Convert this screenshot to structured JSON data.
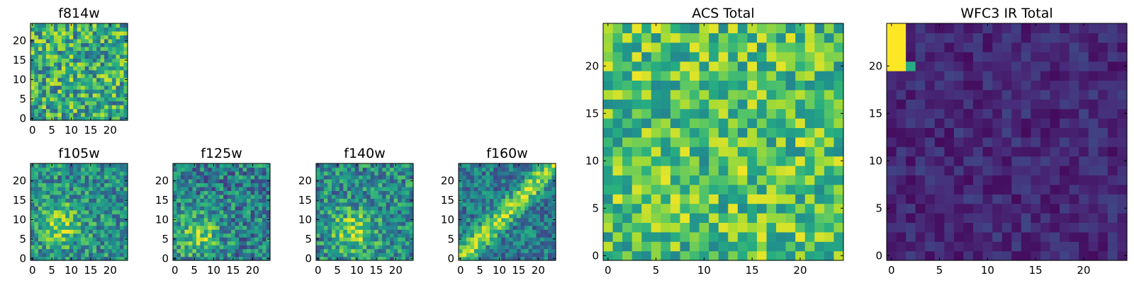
{
  "chart_data": [
    {
      "type": "heatmap",
      "title": "f814w",
      "shape": [
        25,
        25
      ],
      "xticks": [
        0,
        5,
        10,
        15,
        20
      ],
      "yticks": [
        0,
        5,
        10,
        15,
        20
      ],
      "xlim": [
        -0.5,
        24.5
      ],
      "ylim": [
        -0.5,
        24.5
      ],
      "colormap": "viridis",
      "pattern": "noise",
      "seed": 11,
      "mean": 0.62,
      "spread": 0.32
    },
    {
      "type": "heatmap",
      "title": "f105w",
      "shape": [
        25,
        25
      ],
      "xticks": [
        0,
        5,
        10,
        15,
        20
      ],
      "yticks": [
        0,
        5,
        10,
        15,
        20
      ],
      "xlim": [
        -0.5,
        24.5
      ],
      "ylim": [
        -0.5,
        24.5
      ],
      "colormap": "viridis",
      "pattern": "blob",
      "center": [
        7,
        9
      ],
      "seed": 23,
      "mean": 0.58,
      "spread": 0.25
    },
    {
      "type": "heatmap",
      "title": "f125w",
      "shape": [
        25,
        25
      ],
      "xticks": [
        0,
        5,
        10,
        15,
        20
      ],
      "yticks": [
        0,
        5,
        10,
        15,
        20
      ],
      "xlim": [
        -0.5,
        24.5
      ],
      "ylim": [
        -0.5,
        24.5
      ],
      "colormap": "viridis",
      "pattern": "blob",
      "center": [
        6,
        6
      ],
      "seed": 37,
      "mean": 0.52,
      "spread": 0.27
    },
    {
      "type": "heatmap",
      "title": "f140w",
      "shape": [
        25,
        25
      ],
      "xticks": [
        0,
        5,
        10,
        15,
        20
      ],
      "yticks": [
        0,
        5,
        10,
        15,
        20
      ],
      "xlim": [
        -0.5,
        24.5
      ],
      "ylim": [
        -0.5,
        24.5
      ],
      "colormap": "viridis",
      "pattern": "blob",
      "center": [
        9,
        7
      ],
      "seed": 41,
      "mean": 0.56,
      "spread": 0.26
    },
    {
      "type": "heatmap",
      "title": "f160w",
      "shape": [
        25,
        25
      ],
      "xticks": [
        0,
        5,
        10,
        15,
        20
      ],
      "yticks": [
        0,
        5,
        10,
        15,
        20
      ],
      "xlim": [
        -0.5,
        24.5
      ],
      "ylim": [
        -0.5,
        24.5
      ],
      "colormap": "viridis",
      "pattern": "diagonal",
      "seed": 53,
      "mean": 0.5,
      "spread": 0.22
    },
    {
      "type": "heatmap",
      "title": "ACS Total",
      "shape": [
        25,
        25
      ],
      "xticks": [
        0,
        5,
        10,
        15,
        20
      ],
      "yticks": [
        0,
        5,
        10,
        15,
        20
      ],
      "xlim": [
        -0.5,
        24.5
      ],
      "ylim": [
        -0.5,
        24.5
      ],
      "colormap": "viridis",
      "pattern": "noise",
      "seed": 67,
      "mean": 0.72,
      "spread": 0.26
    },
    {
      "type": "heatmap",
      "title": "WFC3 IR Total",
      "shape": [
        25,
        25
      ],
      "xticks": [
        0,
        5,
        10,
        15,
        20
      ],
      "yticks": [
        0,
        5,
        10,
        15,
        20
      ],
      "xlim": [
        -0.5,
        24.5
      ],
      "ylim": [
        -0.5,
        24.5
      ],
      "colormap": "viridis",
      "pattern": "corner",
      "seed": 79,
      "mean": 0.12,
      "spread": 0.09
    }
  ]
}
